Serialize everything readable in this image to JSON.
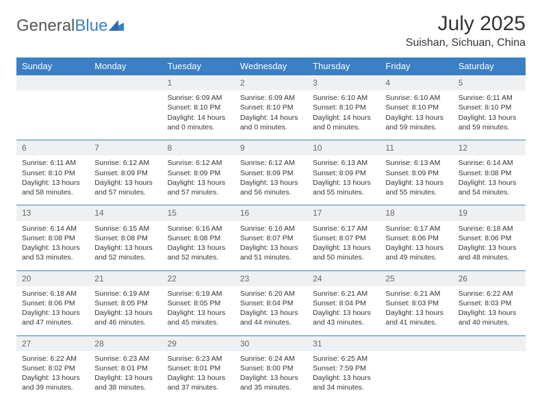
{
  "logo": {
    "text1": "General",
    "text2": "Blue"
  },
  "title": "July 2025",
  "location": "Suishan, Sichuan, China",
  "colors": {
    "header_bg": "#3b7fc4",
    "header_text": "#ffffff",
    "daynum_bg": "#eef0f2",
    "row_border": "#3b7fc4",
    "body_text": "#333333"
  },
  "day_headers": [
    "Sunday",
    "Monday",
    "Tuesday",
    "Wednesday",
    "Thursday",
    "Friday",
    "Saturday"
  ],
  "weeks": [
    [
      {
        "num": "",
        "lines": [
          "",
          "",
          "",
          ""
        ]
      },
      {
        "num": "",
        "lines": [
          "",
          "",
          "",
          ""
        ]
      },
      {
        "num": "1",
        "lines": [
          "Sunrise: 6:09 AM",
          "Sunset: 8:10 PM",
          "Daylight: 14 hours",
          "and 0 minutes."
        ]
      },
      {
        "num": "2",
        "lines": [
          "Sunrise: 6:09 AM",
          "Sunset: 8:10 PM",
          "Daylight: 14 hours",
          "and 0 minutes."
        ]
      },
      {
        "num": "3",
        "lines": [
          "Sunrise: 6:10 AM",
          "Sunset: 8:10 PM",
          "Daylight: 14 hours",
          "and 0 minutes."
        ]
      },
      {
        "num": "4",
        "lines": [
          "Sunrise: 6:10 AM",
          "Sunset: 8:10 PM",
          "Daylight: 13 hours",
          "and 59 minutes."
        ]
      },
      {
        "num": "5",
        "lines": [
          "Sunrise: 6:11 AM",
          "Sunset: 8:10 PM",
          "Daylight: 13 hours",
          "and 59 minutes."
        ]
      }
    ],
    [
      {
        "num": "6",
        "lines": [
          "Sunrise: 6:11 AM",
          "Sunset: 8:10 PM",
          "Daylight: 13 hours",
          "and 58 minutes."
        ]
      },
      {
        "num": "7",
        "lines": [
          "Sunrise: 6:12 AM",
          "Sunset: 8:09 PM",
          "Daylight: 13 hours",
          "and 57 minutes."
        ]
      },
      {
        "num": "8",
        "lines": [
          "Sunrise: 6:12 AM",
          "Sunset: 8:09 PM",
          "Daylight: 13 hours",
          "and 57 minutes."
        ]
      },
      {
        "num": "9",
        "lines": [
          "Sunrise: 6:12 AM",
          "Sunset: 8:09 PM",
          "Daylight: 13 hours",
          "and 56 minutes."
        ]
      },
      {
        "num": "10",
        "lines": [
          "Sunrise: 6:13 AM",
          "Sunset: 8:09 PM",
          "Daylight: 13 hours",
          "and 55 minutes."
        ]
      },
      {
        "num": "11",
        "lines": [
          "Sunrise: 6:13 AM",
          "Sunset: 8:09 PM",
          "Daylight: 13 hours",
          "and 55 minutes."
        ]
      },
      {
        "num": "12",
        "lines": [
          "Sunrise: 6:14 AM",
          "Sunset: 8:08 PM",
          "Daylight: 13 hours",
          "and 54 minutes."
        ]
      }
    ],
    [
      {
        "num": "13",
        "lines": [
          "Sunrise: 6:14 AM",
          "Sunset: 8:08 PM",
          "Daylight: 13 hours",
          "and 53 minutes."
        ]
      },
      {
        "num": "14",
        "lines": [
          "Sunrise: 6:15 AM",
          "Sunset: 8:08 PM",
          "Daylight: 13 hours",
          "and 52 minutes."
        ]
      },
      {
        "num": "15",
        "lines": [
          "Sunrise: 6:16 AM",
          "Sunset: 8:08 PM",
          "Daylight: 13 hours",
          "and 52 minutes."
        ]
      },
      {
        "num": "16",
        "lines": [
          "Sunrise: 6:16 AM",
          "Sunset: 8:07 PM",
          "Daylight: 13 hours",
          "and 51 minutes."
        ]
      },
      {
        "num": "17",
        "lines": [
          "Sunrise: 6:17 AM",
          "Sunset: 8:07 PM",
          "Daylight: 13 hours",
          "and 50 minutes."
        ]
      },
      {
        "num": "18",
        "lines": [
          "Sunrise: 6:17 AM",
          "Sunset: 8:06 PM",
          "Daylight: 13 hours",
          "and 49 minutes."
        ]
      },
      {
        "num": "19",
        "lines": [
          "Sunrise: 6:18 AM",
          "Sunset: 8:06 PM",
          "Daylight: 13 hours",
          "and 48 minutes."
        ]
      }
    ],
    [
      {
        "num": "20",
        "lines": [
          "Sunrise: 6:18 AM",
          "Sunset: 8:06 PM",
          "Daylight: 13 hours",
          "and 47 minutes."
        ]
      },
      {
        "num": "21",
        "lines": [
          "Sunrise: 6:19 AM",
          "Sunset: 8:05 PM",
          "Daylight: 13 hours",
          "and 46 minutes."
        ]
      },
      {
        "num": "22",
        "lines": [
          "Sunrise: 6:19 AM",
          "Sunset: 8:05 PM",
          "Daylight: 13 hours",
          "and 45 minutes."
        ]
      },
      {
        "num": "23",
        "lines": [
          "Sunrise: 6:20 AM",
          "Sunset: 8:04 PM",
          "Daylight: 13 hours",
          "and 44 minutes."
        ]
      },
      {
        "num": "24",
        "lines": [
          "Sunrise: 6:21 AM",
          "Sunset: 8:04 PM",
          "Daylight: 13 hours",
          "and 43 minutes."
        ]
      },
      {
        "num": "25",
        "lines": [
          "Sunrise: 6:21 AM",
          "Sunset: 8:03 PM",
          "Daylight: 13 hours",
          "and 41 minutes."
        ]
      },
      {
        "num": "26",
        "lines": [
          "Sunrise: 6:22 AM",
          "Sunset: 8:03 PM",
          "Daylight: 13 hours",
          "and 40 minutes."
        ]
      }
    ],
    [
      {
        "num": "27",
        "lines": [
          "Sunrise: 6:22 AM",
          "Sunset: 8:02 PM",
          "Daylight: 13 hours",
          "and 39 minutes."
        ]
      },
      {
        "num": "28",
        "lines": [
          "Sunrise: 6:23 AM",
          "Sunset: 8:01 PM",
          "Daylight: 13 hours",
          "and 38 minutes."
        ]
      },
      {
        "num": "29",
        "lines": [
          "Sunrise: 6:23 AM",
          "Sunset: 8:01 PM",
          "Daylight: 13 hours",
          "and 37 minutes."
        ]
      },
      {
        "num": "30",
        "lines": [
          "Sunrise: 6:24 AM",
          "Sunset: 8:00 PM",
          "Daylight: 13 hours",
          "and 35 minutes."
        ]
      },
      {
        "num": "31",
        "lines": [
          "Sunrise: 6:25 AM",
          "Sunset: 7:59 PM",
          "Daylight: 13 hours",
          "and 34 minutes."
        ]
      },
      {
        "num": "",
        "lines": [
          "",
          "",
          "",
          ""
        ]
      },
      {
        "num": "",
        "lines": [
          "",
          "",
          "",
          ""
        ]
      }
    ]
  ]
}
